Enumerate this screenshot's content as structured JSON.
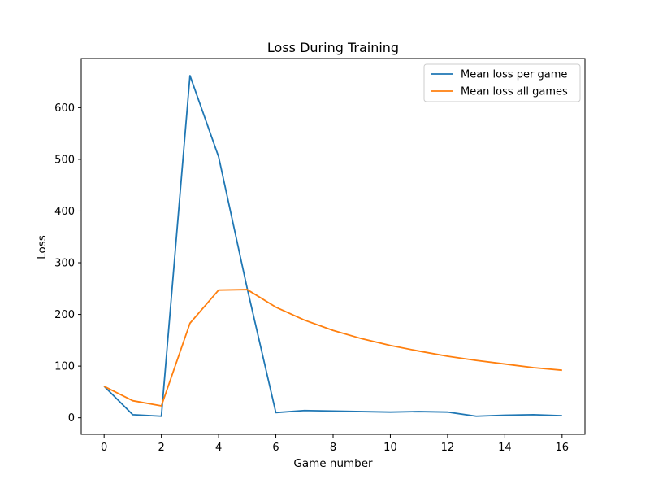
{
  "chart_data": {
    "type": "line",
    "title": "Loss During Training",
    "xlabel": "Game number",
    "ylabel": "Loss",
    "xlim": [
      -0.8,
      16.8
    ],
    "ylim": [
      -32,
      695
    ],
    "xticks": [
      0,
      2,
      4,
      6,
      8,
      10,
      12,
      14,
      16
    ],
    "yticks": [
      0,
      100,
      200,
      300,
      400,
      500,
      600
    ],
    "legend_position": "top-right",
    "grid": false,
    "x": [
      0,
      1,
      2,
      3,
      4,
      5,
      6,
      7,
      8,
      9,
      10,
      11,
      12,
      13,
      14,
      15,
      16
    ],
    "series": [
      {
        "name": "Mean loss per game",
        "color": "#1f77b4",
        "values": [
          61,
          6,
          3,
          662,
          505,
          250,
          10,
          14,
          13,
          12,
          11,
          12,
          11,
          3,
          5,
          6,
          4
        ]
      },
      {
        "name": "Mean loss all games",
        "color": "#ff7f0e",
        "values": [
          61,
          33,
          23,
          183,
          247,
          248,
          214,
          189,
          169,
          153,
          140,
          129,
          119,
          111,
          104,
          97,
          92
        ]
      }
    ]
  }
}
